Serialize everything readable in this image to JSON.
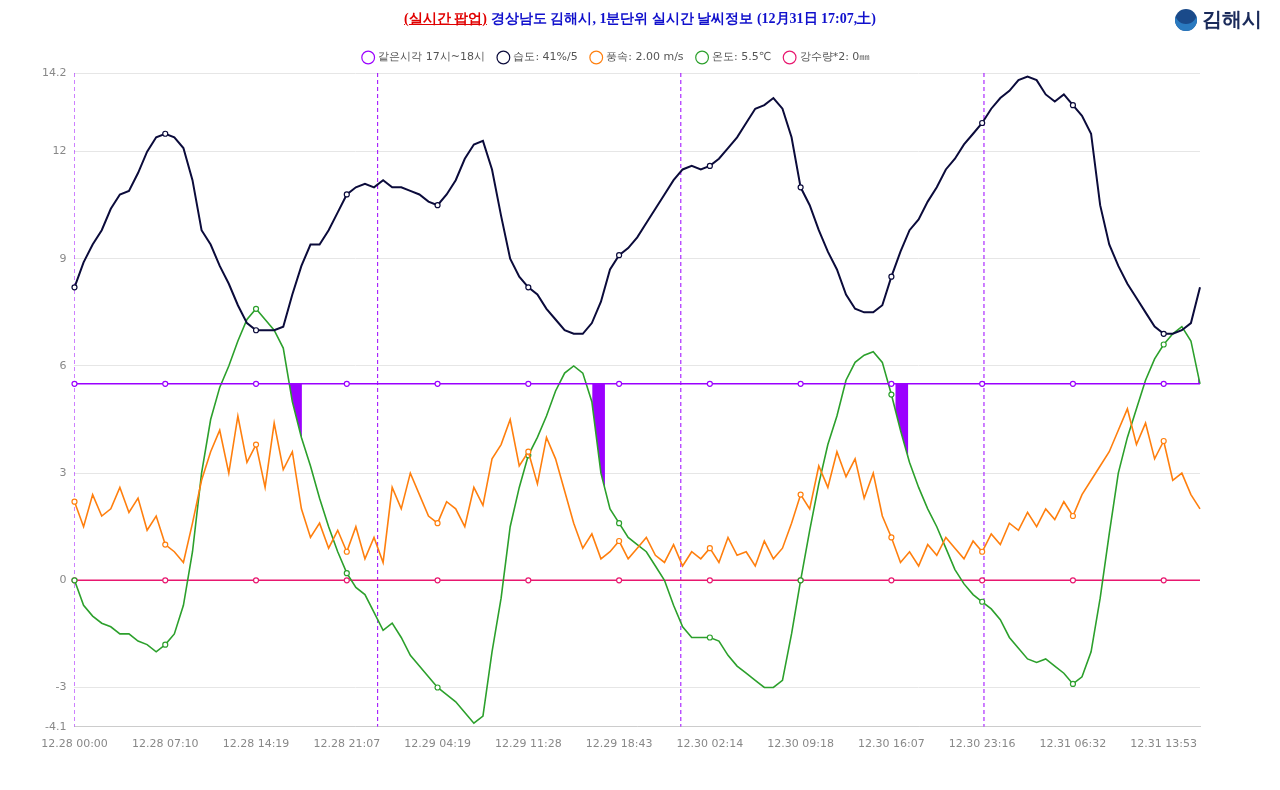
{
  "chart_data": {
    "type": "line",
    "title": [
      "(실시간 팝업)",
      "경상남도 김해시, 1분단위 실시간 날씨정보 (12月31日 17:07,土)"
    ],
    "annotations": [
      "김해시"
    ],
    "categories": [
      "12.28 00:00",
      null,
      null,
      null,
      null,
      null,
      null,
      null,
      null,
      null,
      "12.28 07:10",
      null,
      null,
      null,
      null,
      null,
      null,
      null,
      null,
      null,
      "12.28 14:19",
      null,
      null,
      null,
      null,
      null,
      null,
      null,
      null,
      null,
      "12.28 21:07",
      null,
      null,
      null,
      null,
      null,
      null,
      null,
      null,
      null,
      "12.29 04:19",
      null,
      null,
      null,
      null,
      null,
      null,
      null,
      null,
      null,
      "12.29 11:28",
      null,
      null,
      null,
      null,
      null,
      null,
      null,
      null,
      null,
      "12.29 18:43",
      null,
      null,
      null,
      null,
      null,
      null,
      null,
      null,
      null,
      "12.30 02:14",
      null,
      null,
      null,
      null,
      null,
      null,
      null,
      null,
      null,
      "12.30 09:18",
      null,
      null,
      null,
      null,
      null,
      null,
      null,
      null,
      null,
      "12.30 16:07",
      null,
      null,
      null,
      null,
      null,
      null,
      null,
      null,
      null,
      "12.30 23:16",
      null,
      null,
      null,
      null,
      null,
      null,
      null,
      null,
      null,
      "12.31 06:32",
      null,
      null,
      null,
      null,
      null,
      null,
      null,
      null,
      null,
      "12.31 13:53",
      null,
      null,
      null,
      null
    ],
    "series": [
      {
        "name": "온도: 5.5℃",
        "color": "#2ca02c",
        "marker": "circle",
        "values": [
          0,
          -0.7,
          -1.0,
          -1.2,
          -1.3,
          -1.5,
          -1.5,
          -1.7,
          -1.8,
          -2.0,
          -1.8,
          -1.5,
          -0.7,
          0.8,
          3.0,
          4.5,
          5.4,
          6.0,
          6.7,
          7.3,
          7.6,
          7.3,
          7.0,
          6.5,
          5.0,
          4.0,
          3.2,
          2.3,
          1.5,
          0.8,
          0.2,
          -0.2,
          -0.4,
          -0.9,
          -1.4,
          -1.2,
          -1.6,
          -2.1,
          -2.4,
          -2.7,
          -3.0,
          -3.2,
          -3.4,
          -3.7,
          -4.0,
          -3.8,
          -2.0,
          -0.5,
          1.5,
          2.6,
          3.5,
          4.0,
          4.6,
          5.3,
          5.8,
          6.0,
          5.8,
          5.0,
          3.0,
          2.0,
          1.6,
          1.2,
          1.0,
          0.8,
          0.4,
          0.0,
          -0.7,
          -1.3,
          -1.6,
          -1.6,
          -1.6,
          -1.7,
          -2.1,
          -2.4,
          -2.6,
          -2.8,
          -3.0,
          -3.0,
          -2.8,
          -1.5,
          0.0,
          1.4,
          2.7,
          3.8,
          4.6,
          5.6,
          6.1,
          6.3,
          6.4,
          6.1,
          5.2,
          4.2,
          3.3,
          2.6,
          2.0,
          1.5,
          0.9,
          0.3,
          -0.1,
          -0.4,
          -0.6,
          -0.8,
          -1.1,
          -1.6,
          -1.9,
          -2.2,
          -2.3,
          -2.2,
          -2.4,
          -2.6,
          -2.9,
          -2.7,
          -2.0,
          -0.5,
          1.3,
          3.0,
          4.0,
          4.8,
          5.6,
          6.2,
          6.6,
          6.9,
          7.1,
          6.7,
          5.5
        ]
      },
      {
        "name": "풍속: 2.00 m/s",
        "color": "#ff7f0e",
        "marker": "circle",
        "values": [
          2.2,
          1.5,
          2.4,
          1.8,
          2.0,
          2.6,
          1.9,
          2.3,
          1.4,
          1.8,
          1.0,
          0.8,
          0.5,
          1.6,
          2.8,
          3.6,
          4.2,
          3.0,
          4.6,
          3.3,
          3.8,
          2.6,
          4.4,
          3.1,
          3.6,
          2.0,
          1.2,
          1.6,
          0.9,
          1.4,
          0.8,
          1.5,
          0.6,
          1.2,
          0.5,
          2.6,
          2.0,
          3.0,
          2.4,
          1.8,
          1.6,
          2.2,
          2.0,
          1.5,
          2.6,
          2.1,
          3.4,
          3.8,
          4.5,
          3.2,
          3.6,
          2.7,
          4.0,
          3.4,
          2.5,
          1.6,
          0.9,
          1.3,
          0.6,
          0.8,
          1.1,
          0.6,
          0.9,
          1.2,
          0.7,
          0.5,
          1.0,
          0.4,
          0.8,
          0.6,
          0.9,
          0.5,
          1.2,
          0.7,
          0.8,
          0.4,
          1.1,
          0.6,
          0.9,
          1.6,
          2.4,
          2.0,
          3.2,
          2.6,
          3.6,
          2.9,
          3.4,
          2.3,
          3.0,
          1.8,
          1.2,
          0.5,
          0.8,
          0.4,
          1.0,
          0.7,
          1.2,
          0.9,
          0.6,
          1.1,
          0.8,
          1.3,
          1.0,
          1.6,
          1.4,
          1.9,
          1.5,
          2.0,
          1.7,
          2.2,
          1.8,
          2.4,
          2.8,
          3.2,
          3.6,
          4.2,
          4.8,
          3.8,
          4.4,
          3.4,
          3.9,
          2.8,
          3.0,
          2.4,
          2.0
        ]
      },
      {
        "name": "강수량*2: 0㎜",
        "color": "#e8176f",
        "marker": "circle",
        "values": [
          0,
          0,
          0,
          0,
          0,
          0,
          0,
          0,
          0,
          0,
          0,
          0,
          0,
          0,
          0,
          0,
          0,
          0,
          0,
          0,
          0,
          0,
          0,
          0,
          0,
          0,
          0,
          0,
          0,
          0,
          0,
          0,
          0,
          0,
          0,
          0,
          0,
          0,
          0,
          0,
          0,
          0,
          0,
          0,
          0,
          0,
          0,
          0,
          0,
          0,
          0,
          0,
          0,
          0,
          0,
          0,
          0,
          0,
          0,
          0,
          0,
          0,
          0,
          0,
          0,
          0,
          0,
          0,
          0,
          0,
          0,
          0,
          0,
          0,
          0,
          0,
          0,
          0,
          0,
          0,
          0,
          0,
          0,
          0,
          0,
          0,
          0,
          0,
          0,
          0,
          0,
          0,
          0,
          0,
          0,
          0,
          0,
          0,
          0,
          0,
          0,
          0,
          0,
          0,
          0,
          0,
          0,
          0,
          0,
          0,
          0,
          0,
          0,
          0,
          0,
          0,
          0,
          0,
          0,
          0,
          0,
          0,
          0,
          0,
          0
        ]
      },
      {
        "name": "습도: 41%/5",
        "color": "#0b0b3b",
        "marker": "circle",
        "values": [
          8.2,
          8.9,
          9.4,
          9.8,
          10.4,
          10.8,
          10.9,
          11.4,
          12.0,
          12.4,
          12.5,
          12.4,
          12.1,
          11.2,
          9.8,
          9.4,
          8.8,
          8.3,
          7.7,
          7.2,
          7.0,
          7.0,
          7.0,
          7.1,
          8.0,
          8.8,
          9.4,
          9.4,
          9.8,
          10.3,
          10.8,
          11.0,
          11.1,
          11.0,
          11.2,
          11.0,
          11.0,
          10.9,
          10.8,
          10.6,
          10.5,
          10.8,
          11.2,
          11.8,
          12.2,
          12.3,
          11.5,
          10.2,
          9.0,
          8.5,
          8.2,
          8.0,
          7.6,
          7.3,
          7.0,
          6.9,
          6.9,
          7.2,
          7.8,
          8.7,
          9.1,
          9.3,
          9.6,
          10.0,
          10.4,
          10.8,
          11.2,
          11.5,
          11.6,
          11.5,
          11.6,
          11.8,
          12.1,
          12.4,
          12.8,
          13.2,
          13.3,
          13.5,
          13.2,
          12.4,
          11.0,
          10.5,
          9.8,
          9.2,
          8.7,
          8.0,
          7.6,
          7.5,
          7.5,
          7.7,
          8.5,
          9.2,
          9.8,
          10.1,
          10.6,
          11.0,
          11.5,
          11.8,
          12.2,
          12.5,
          12.8,
          13.2,
          13.5,
          13.7,
          14.0,
          14.1,
          14.0,
          13.6,
          13.4,
          13.6,
          13.3,
          13.0,
          12.5,
          10.5,
          9.4,
          8.8,
          8.3,
          7.9,
          7.5,
          7.1,
          6.9,
          6.9,
          7.0,
          7.2,
          8.2
        ]
      },
      {
        "name": "같은시각 17시~18시",
        "color": "#9b00ff",
        "marker": "circle",
        "highlight_ranges": [
          [
            23.65,
            25.05
          ],
          [
            57.05,
            58.44
          ],
          [
            90.45,
            91.84
          ],
          [
            123.8,
            124
          ]
        ],
        "values": [
          5.5,
          5.5,
          5.5,
          5.5,
          5.5,
          5.5,
          5.5,
          5.5,
          5.5,
          5.5,
          5.5,
          5.5,
          5.5,
          5.5,
          5.5,
          5.5,
          5.5,
          5.5,
          5.5,
          5.5,
          5.5,
          5.5,
          5.5,
          5.5,
          5.5,
          5.5,
          5.5,
          5.5,
          5.5,
          5.5,
          5.5,
          5.5,
          5.5,
          5.5,
          5.5,
          5.5,
          5.5,
          5.5,
          5.5,
          5.5,
          5.5,
          5.5,
          5.5,
          5.5,
          5.5,
          5.5,
          5.5,
          5.5,
          5.5,
          5.5,
          5.5,
          5.5,
          5.5,
          5.5,
          5.5,
          5.5,
          5.5,
          5.5,
          5.5,
          5.5,
          5.5,
          5.5,
          5.5,
          5.5,
          5.5,
          5.5,
          5.5,
          5.5,
          5.5,
          5.5,
          5.5,
          5.5,
          5.5,
          5.5,
          5.5,
          5.5,
          5.5,
          5.5,
          5.5,
          5.5,
          5.5,
          5.5,
          5.5,
          5.5,
          5.5,
          5.5,
          5.5,
          5.5,
          5.5,
          5.5,
          5.5,
          5.5,
          5.5,
          5.5,
          5.5,
          5.5,
          5.5,
          5.5,
          5.5,
          5.5,
          5.5,
          5.5,
          5.5,
          5.5,
          5.5,
          5.5,
          5.5,
          5.5,
          5.5,
          5.5,
          5.5,
          5.5,
          5.5,
          5.5,
          5.5,
          5.5,
          5.5,
          5.5,
          5.5,
          5.5,
          5.5,
          5.5,
          5.5,
          5.5,
          5.5
        ]
      }
    ],
    "day_lines": [
      0,
      33.4,
      66.8,
      100.2
    ],
    "ylim": [
      -4.1,
      14.2
    ],
    "yticks": [
      -4.1,
      -3,
      0,
      3,
      6,
      9,
      12,
      14.2
    ],
    "grid": true,
    "legend": "top"
  }
}
